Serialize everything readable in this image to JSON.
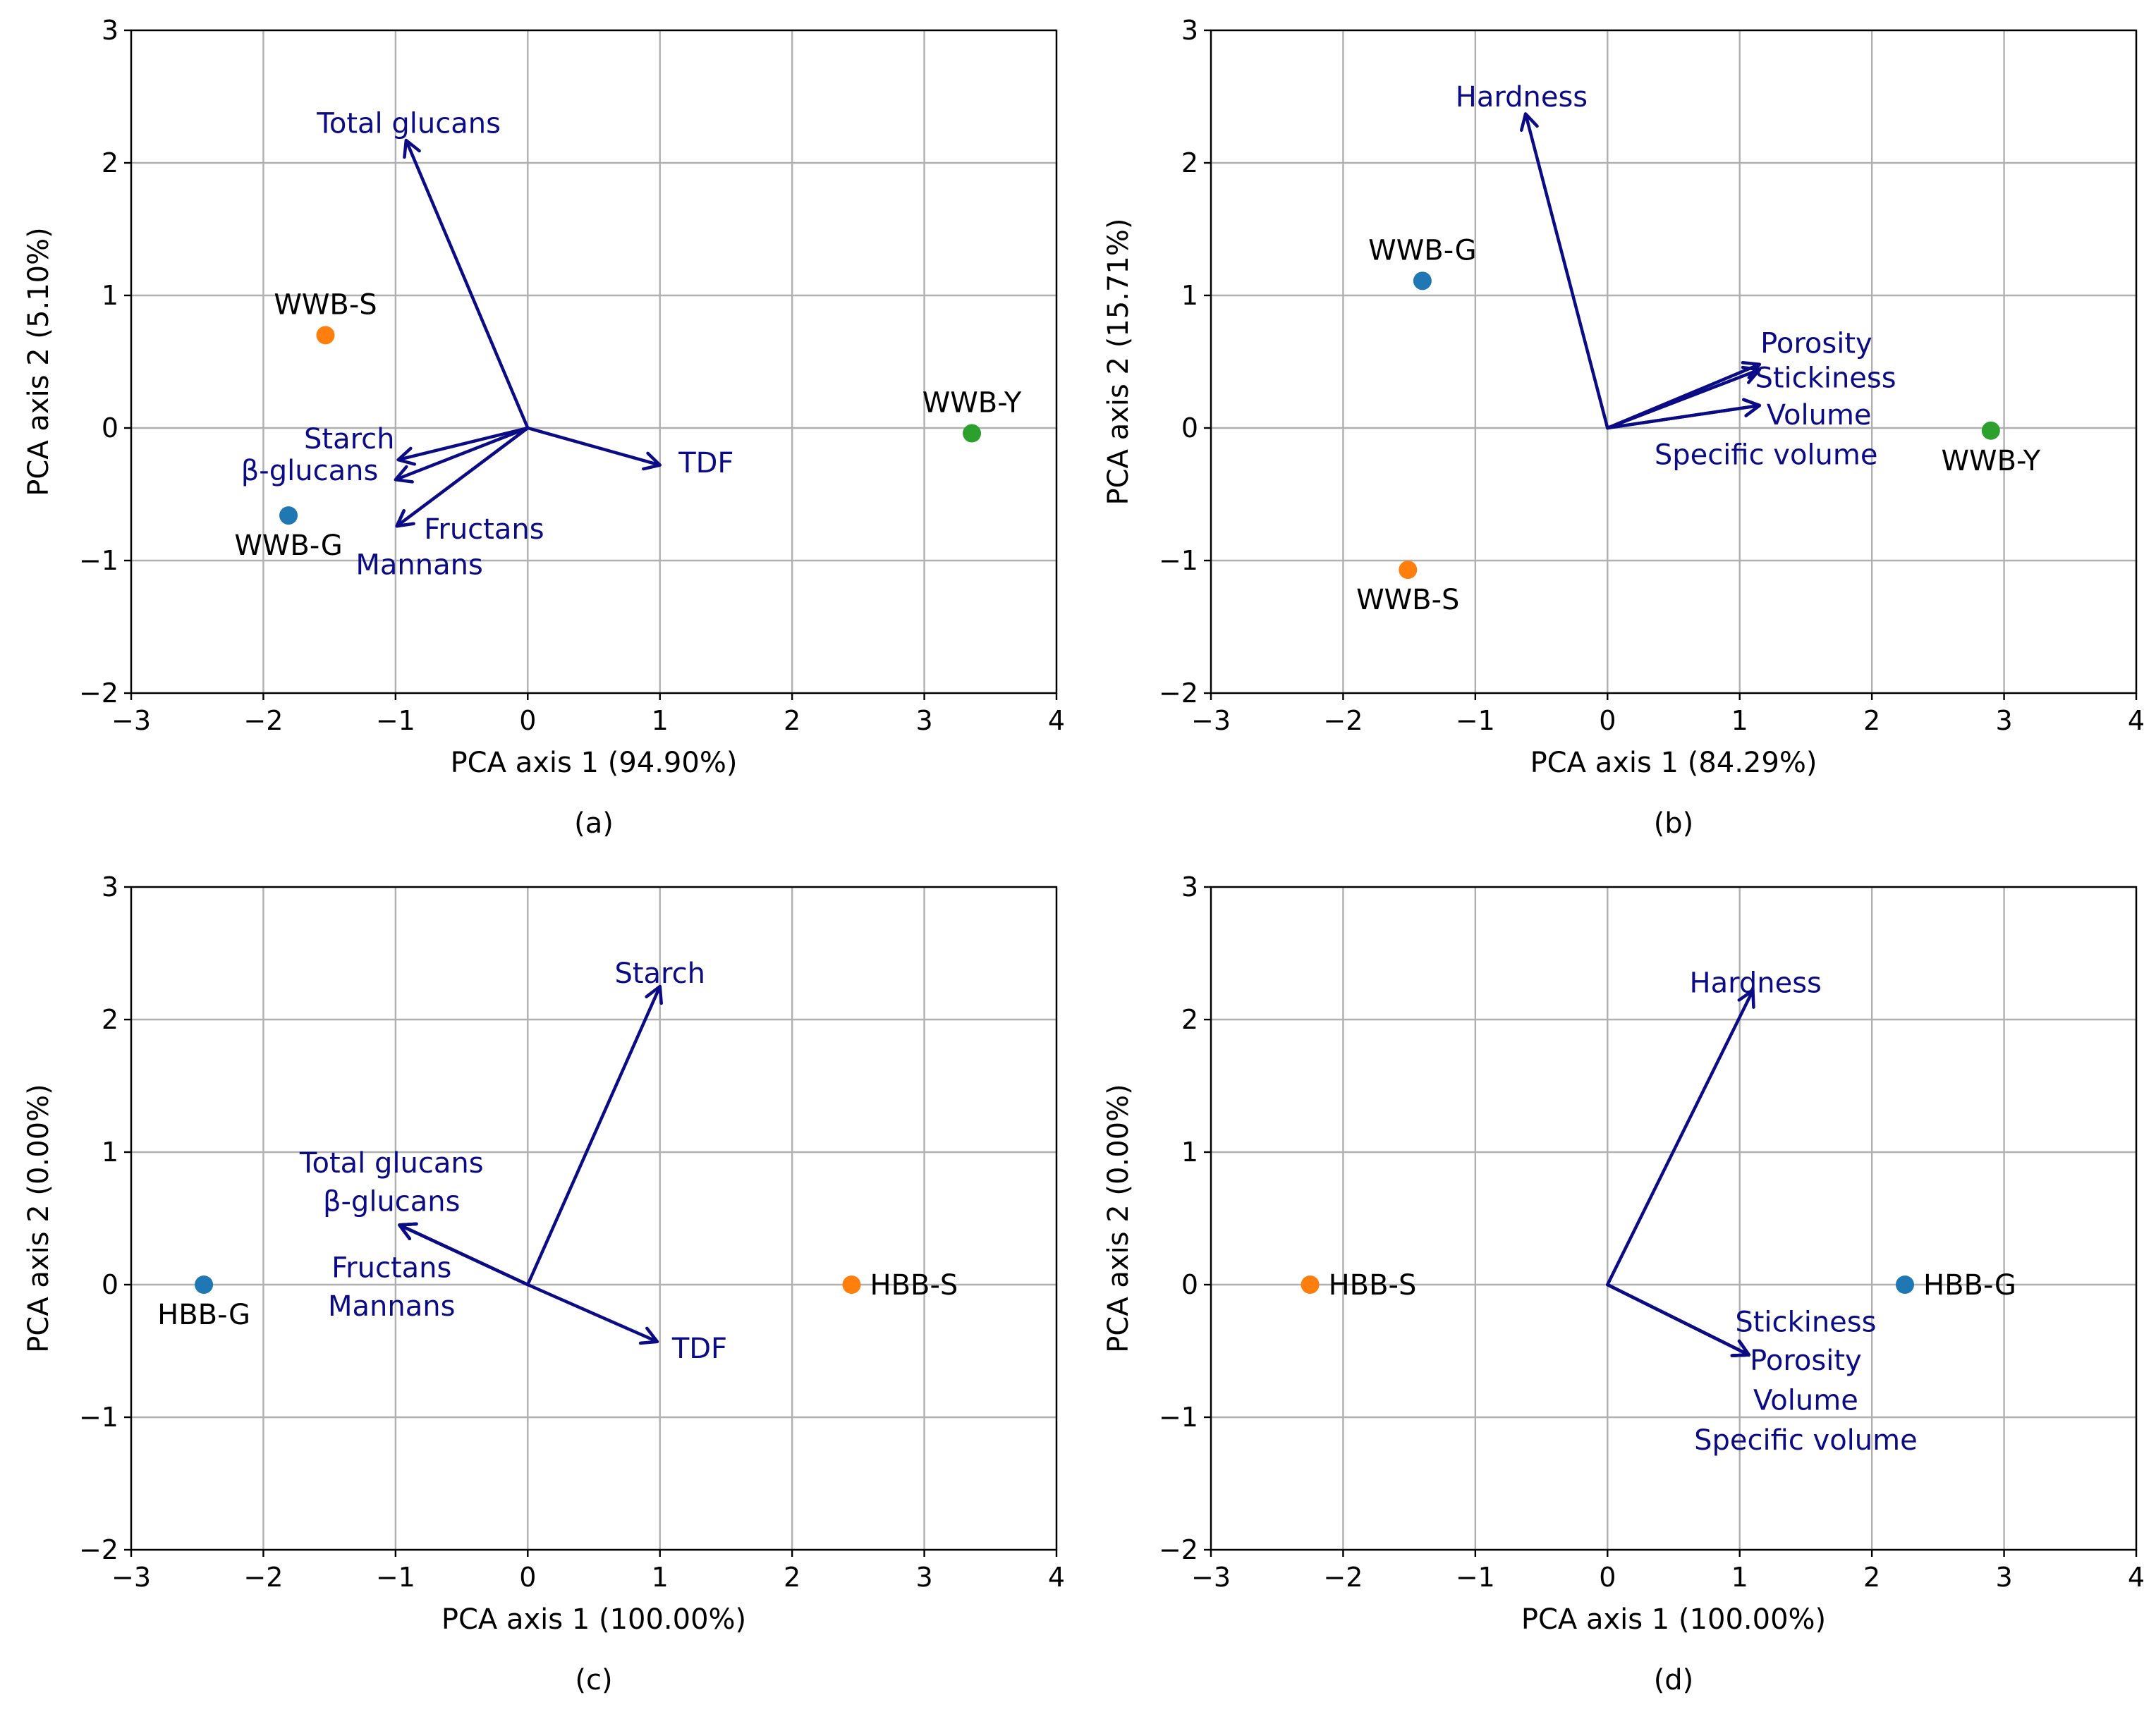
{
  "chart_data": [
    {
      "type": "scatter",
      "caption": "(a)",
      "xlabel": "PCA axis 1 (94.90%)",
      "ylabel": "PCA axis 2 (5.10%)",
      "xlim": [
        -3,
        4
      ],
      "ylim": [
        -2,
        3
      ],
      "xticks": [
        -3,
        -2,
        -1,
        0,
        1,
        2,
        3,
        4
      ],
      "yticks": [
        -2,
        -1,
        0,
        1,
        2,
        3
      ],
      "grid": true,
      "points": [
        {
          "label": "WWB-S",
          "x": -1.53,
          "y": 0.7,
          "color": "#ff7f0e",
          "label_pos": "above"
        },
        {
          "label": "WWB-G",
          "x": -1.81,
          "y": -0.66,
          "color": "#1f77b4",
          "label_pos": "below"
        },
        {
          "label": "WWB-Y",
          "x": 3.36,
          "y": -0.04,
          "color": "#2ca02c",
          "label_pos": "above"
        }
      ],
      "vectors": [
        {
          "label": "Total glucans",
          "x": -0.92,
          "y": 2.17,
          "lx": -0.9,
          "ly": 2.3
        },
        {
          "label": "Starch",
          "x": -0.98,
          "y": -0.24,
          "lx": -1.35,
          "ly": -0.08
        },
        {
          "label": "β-glucans",
          "x": -1.0,
          "y": -0.39,
          "lx": -1.65,
          "ly": -0.32
        },
        {
          "label": "Fructans",
          "x": -0.99,
          "y": -0.74,
          "lx": -0.33,
          "ly": -0.76
        },
        {
          "label": "Mannans",
          "x": -0.99,
          "y": -0.74,
          "lx": -0.82,
          "ly": -1.03
        },
        {
          "label": "TDF",
          "x": 1.0,
          "y": -0.28,
          "lx": 1.35,
          "ly": -0.26
        }
      ]
    },
    {
      "type": "scatter",
      "caption": "(b)",
      "xlabel": "PCA axis 1 (84.29%)",
      "ylabel": "PCA axis 2 (15.71%)",
      "xlim": [
        -3,
        4
      ],
      "ylim": [
        -2,
        3
      ],
      "xticks": [
        -3,
        -2,
        -1,
        0,
        1,
        2,
        3,
        4
      ],
      "yticks": [
        -2,
        -1,
        0,
        1,
        2,
        3
      ],
      "grid": true,
      "points": [
        {
          "label": "WWB-G",
          "x": -1.4,
          "y": 1.11,
          "color": "#1f77b4",
          "label_pos": "above"
        },
        {
          "label": "WWB-S",
          "x": -1.51,
          "y": -1.07,
          "color": "#ff7f0e",
          "label_pos": "below"
        },
        {
          "label": "WWB-Y",
          "x": 2.9,
          "y": -0.02,
          "color": "#2ca02c",
          "label_pos": "below"
        }
      ],
      "vectors": [
        {
          "label": "Hardness",
          "x": -0.62,
          "y": 2.37,
          "lx": -0.65,
          "ly": 2.5
        },
        {
          "label": "Porosity",
          "x": 1.15,
          "y": 0.48,
          "lx": 1.58,
          "ly": 0.64
        },
        {
          "label": "Stickiness",
          "x": 1.15,
          "y": 0.44,
          "lx": 1.65,
          "ly": 0.38
        },
        {
          "label": "Volume",
          "x": 1.15,
          "y": 0.17,
          "lx": 1.6,
          "ly": 0.1
        },
        {
          "label": "Specific volume",
          "x": 1.15,
          "y": 0.17,
          "lx": 1.2,
          "ly": -0.2
        }
      ]
    },
    {
      "type": "scatter",
      "caption": "(c)",
      "xlabel": "PCA axis 1 (100.00%)",
      "ylabel": "PCA axis 2 (0.00%)",
      "xlim": [
        -3,
        4
      ],
      "ylim": [
        -2,
        3
      ],
      "xticks": [
        -3,
        -2,
        -1,
        0,
        1,
        2,
        3,
        4
      ],
      "yticks": [
        -2,
        -1,
        0,
        1,
        2,
        3
      ],
      "grid": true,
      "points": [
        {
          "label": "HBB-G",
          "x": -2.45,
          "y": 0.0,
          "color": "#1f77b4",
          "label_pos": "below"
        },
        {
          "label": "HBB-S",
          "x": 2.45,
          "y": 0.0,
          "color": "#ff7f0e",
          "label_pos": "right"
        }
      ],
      "vectors": [
        {
          "label": "Starch",
          "x": 1.0,
          "y": 2.25,
          "lx": 1.0,
          "ly": 2.35
        },
        {
          "label": "Total glucans",
          "x": -0.97,
          "y": 0.45,
          "lx": -1.03,
          "ly": 0.92
        },
        {
          "label": "β-glucans",
          "x": -0.97,
          "y": 0.45,
          "lx": -1.03,
          "ly": 0.63
        },
        {
          "label": "Fructans",
          "x": -0.97,
          "y": 0.45,
          "lx": -1.03,
          "ly": 0.13
        },
        {
          "label": "Mannans",
          "x": -0.97,
          "y": 0.45,
          "lx": -1.03,
          "ly": -0.16
        },
        {
          "label": "TDF",
          "x": 0.98,
          "y": -0.43,
          "lx": 1.3,
          "ly": -0.48
        }
      ]
    },
    {
      "type": "scatter",
      "caption": "(d)",
      "xlabel": "PCA axis 1 (100.00%)",
      "ylabel": "PCA axis 2 (0.00%)",
      "xlim": [
        -3,
        4
      ],
      "ylim": [
        -2,
        3
      ],
      "xticks": [
        -3,
        -2,
        -1,
        0,
        1,
        2,
        3,
        4
      ],
      "yticks": [
        -2,
        -1,
        0,
        1,
        2,
        3
      ],
      "grid": true,
      "points": [
        {
          "label": "HBB-S",
          "x": -2.25,
          "y": 0.0,
          "color": "#ff7f0e",
          "label_pos": "right"
        },
        {
          "label": "HBB-G",
          "x": 2.25,
          "y": 0.0,
          "color": "#1f77b4",
          "label_pos": "right"
        }
      ],
      "vectors": [
        {
          "label": "Hardness",
          "x": 1.1,
          "y": 2.22,
          "lx": 1.12,
          "ly": 2.28
        },
        {
          "label": "Stickiness",
          "x": 1.07,
          "y": -0.53,
          "lx": 1.5,
          "ly": -0.28
        },
        {
          "label": "Porosity",
          "x": 1.07,
          "y": -0.53,
          "lx": 1.5,
          "ly": -0.57
        },
        {
          "label": "Volume",
          "x": 1.07,
          "y": -0.53,
          "lx": 1.5,
          "ly": -0.87
        },
        {
          "label": "Specific volume",
          "x": 1.07,
          "y": -0.53,
          "lx": 1.5,
          "ly": -1.17
        }
      ]
    }
  ]
}
